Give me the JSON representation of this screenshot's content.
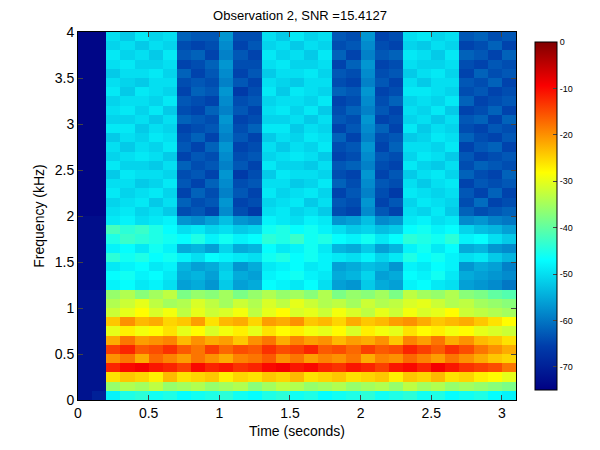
{
  "chart_data": {
    "type": "heatmap",
    "title": "Observation 2, SNR =15.4127",
    "x_label": "Time (seconds)",
    "y_label": "Frequency (kHz)",
    "color": "Jet",
    "xlim": [
      0,
      3.1
    ],
    "ylim": [
      0,
      4
    ],
    "xticks": [
      0,
      0.5,
      1,
      1.5,
      2,
      2.5,
      3
    ],
    "yticks": [
      0,
      0.5,
      1,
      1.5,
      2,
      2.5,
      3,
      3.5,
      4
    ],
    "zlim": [
      -75,
      0
    ],
    "zticks": [
      0,
      -10,
      -20,
      -30,
      -40,
      -50,
      -60,
      -70
    ],
    "x": [
      0.05,
      0.15,
      0.25,
      0.35,
      0.45,
      0.55,
      0.65,
      0.75,
      0.85,
      0.95,
      1.05,
      1.15,
      1.25,
      1.35,
      1.45,
      1.55,
      1.65,
      1.75,
      1.85,
      1.95,
      2.05,
      2.15,
      2.25,
      2.35,
      2.45,
      2.55,
      2.65,
      2.75,
      2.85,
      2.95,
      3.05
    ],
    "y": [
      0.05,
      0.15,
      0.25,
      0.35,
      0.45,
      0.55,
      0.65,
      0.75,
      0.85,
      0.95,
      1.05,
      1.15,
      1.25,
      1.35,
      1.45,
      1.55,
      1.65,
      1.75,
      1.85,
      1.95,
      2.05,
      2.15,
      2.25,
      2.35,
      2.45,
      2.55,
      2.65,
      2.75,
      2.85,
      2.95,
      3.05,
      3.15,
      3.25,
      3.35,
      3.45,
      3.55,
      3.65,
      3.75,
      3.85,
      3.95
    ],
    "z": [
      [
        -72,
        -70,
        -48,
        -45,
        -44,
        -46,
        -45,
        -47,
        -46,
        -45,
        -44,
        -46,
        -47,
        -45,
        -44,
        -46,
        -45,
        -47,
        -46,
        -45,
        -44,
        -46,
        -45,
        -44,
        -46,
        -45,
        -47,
        -46,
        -45,
        -47,
        -48
      ],
      [
        -72,
        -72,
        -36,
        -34,
        -35,
        -33,
        -36,
        -35,
        -34,
        -36,
        -35,
        -34,
        -37,
        -35,
        -33,
        -34,
        -36,
        -35,
        -34,
        -36,
        -35,
        -34,
        -36,
        -33,
        -35,
        -34,
        -36,
        -35,
        -36,
        -37,
        -38
      ],
      [
        -72,
        -72,
        -26,
        -24,
        -25,
        -27,
        -23,
        -26,
        -25,
        -24,
        -27,
        -25,
        -26,
        -24,
        -25,
        -23,
        -26,
        -25,
        -24,
        -26,
        -25,
        -24,
        -27,
        -24,
        -25,
        -23,
        -26,
        -25,
        -27,
        -28,
        -30
      ],
      [
        -72,
        -72,
        -12,
        -10,
        -9,
        -11,
        -12,
        -14,
        -10,
        -12,
        -11,
        -13,
        -12,
        -10,
        -9,
        -11,
        -10,
        -12,
        -13,
        -11,
        -12,
        -14,
        -11,
        -10,
        -12,
        -9,
        -11,
        -13,
        -14,
        -15,
        -18
      ],
      [
        -72,
        -72,
        -20,
        -18,
        -22,
        -17,
        -19,
        -21,
        -18,
        -20,
        -22,
        -19,
        -18,
        -16,
        -20,
        -18,
        -21,
        -19,
        -20,
        -18,
        -22,
        -19,
        -20,
        -17,
        -19,
        -21,
        -18,
        -20,
        -22,
        -24,
        -25
      ],
      [
        -72,
        -72,
        -14,
        -12,
        -16,
        -15,
        -13,
        -16,
        -18,
        -14,
        -17,
        -15,
        -16,
        -13,
        -15,
        -14,
        -12,
        -16,
        -15,
        -17,
        -14,
        -16,
        -15,
        -12,
        -14,
        -16,
        -13,
        -15,
        -18,
        -20,
        -22
      ],
      [
        -72,
        -72,
        -22,
        -18,
        -21,
        -20,
        -19,
        -23,
        -20,
        -22,
        -21,
        -24,
        -20,
        -18,
        -22,
        -19,
        -21,
        -20,
        -23,
        -21,
        -22,
        -20,
        -24,
        -19,
        -21,
        -18,
        -22,
        -20,
        -23,
        -24,
        -26
      ],
      [
        -72,
        -72,
        -30,
        -27,
        -29,
        -28,
        -26,
        -30,
        -28,
        -31,
        -29,
        -27,
        -30,
        -26,
        -28,
        -27,
        -29,
        -30,
        -28,
        -31,
        -27,
        -29,
        -30,
        -26,
        -28,
        -27,
        -29,
        -28,
        -30,
        -31,
        -32
      ],
      [
        -72,
        -72,
        -24,
        -20,
        -23,
        -22,
        -25,
        -24,
        -21,
        -26,
        -23,
        -22,
        -25,
        -21,
        -22,
        -20,
        -24,
        -23,
        -25,
        -22,
        -24,
        -23,
        -21,
        -20,
        -22,
        -24,
        -23,
        -22,
        -24,
        -26,
        -28
      ],
      [
        -72,
        -72,
        -32,
        -30,
        -28,
        -31,
        -29,
        -33,
        -30,
        -32,
        -31,
        -29,
        -33,
        -30,
        -28,
        -31,
        -30,
        -32,
        -29,
        -31,
        -33,
        -30,
        -32,
        -29,
        -31,
        -30,
        -28,
        -32,
        -33,
        -34,
        -35
      ],
      [
        -72,
        -72,
        -34,
        -32,
        -30,
        -33,
        -35,
        -34,
        -31,
        -33,
        -35,
        -32,
        -34,
        -31,
        -33,
        -30,
        -32,
        -34,
        -33,
        -35,
        -32,
        -34,
        -33,
        -31,
        -30,
        -32,
        -34,
        -33,
        -35,
        -36,
        -37
      ],
      [
        -72,
        -72,
        -36,
        -34,
        -37,
        -35,
        -33,
        -38,
        -36,
        -37,
        -35,
        -38,
        -36,
        -34,
        -36,
        -35,
        -37,
        -34,
        -38,
        -36,
        -37,
        -35,
        -38,
        -33,
        -35,
        -36,
        -34,
        -37,
        -38,
        -40,
        -41
      ],
      [
        -73,
        -73,
        -48,
        -47,
        -49,
        -48,
        -50,
        -56,
        -55,
        -57,
        -52,
        -56,
        -55,
        -47,
        -48,
        -49,
        -47,
        -50,
        -56,
        -57,
        -52,
        -55,
        -56,
        -48,
        -47,
        -49,
        -50,
        -56,
        -57,
        -58,
        -60
      ],
      [
        -73,
        -73,
        -47,
        -46,
        -48,
        -47,
        -49,
        -55,
        -54,
        -56,
        -51,
        -55,
        -56,
        -48,
        -47,
        -46,
        -48,
        -49,
        -55,
        -54,
        -51,
        -56,
        -55,
        -47,
        -48,
        -46,
        -49,
        -55,
        -56,
        -57,
        -58
      ],
      [
        -73,
        -73,
        -49,
        -48,
        -47,
        -49,
        -48,
        -54,
        -56,
        -55,
        -52,
        -57,
        -55,
        -49,
        -48,
        -47,
        -49,
        -48,
        -56,
        -55,
        -53,
        -54,
        -57,
        -48,
        -49,
        -47,
        -48,
        -57,
        -55,
        -56,
        -59
      ],
      [
        -73,
        -73,
        -44,
        -46,
        -45,
        -47,
        -46,
        -48,
        -50,
        -47,
        -48,
        -49,
        -50,
        -46,
        -45,
        -47,
        -46,
        -48,
        -49,
        -50,
        -48,
        -51,
        -49,
        -45,
        -47,
        -46,
        -48,
        -50,
        -49,
        -52,
        -54
      ],
      [
        -73,
        -73,
        -48,
        -47,
        -49,
        -46,
        -48,
        -55,
        -54,
        -56,
        -51,
        -55,
        -54,
        -47,
        -49,
        -48,
        -46,
        -49,
        -54,
        -55,
        -52,
        -56,
        -54,
        -48,
        -46,
        -49,
        -47,
        -55,
        -54,
        -57,
        -58
      ],
      [
        -73,
        -73,
        -45,
        -43,
        -44,
        -45,
        -46,
        -47,
        -45,
        -48,
        -46,
        -48,
        -47,
        -44,
        -45,
        -43,
        -46,
        -45,
        -47,
        -48,
        -46,
        -49,
        -47,
        -44,
        -45,
        -46,
        -44,
        -48,
        -47,
        -50,
        -52
      ],
      [
        -73,
        -73,
        -42,
        -44,
        -43,
        -45,
        -47,
        -50,
        -49,
        -51,
        -50,
        -52,
        -51,
        -46,
        -45,
        -47,
        -46,
        -48,
        -50,
        -52,
        -51,
        -53,
        -52,
        -47,
        -46,
        -48,
        -47,
        -51,
        -53,
        -54,
        -56
      ],
      [
        -73,
        -73,
        -49,
        -48,
        -50,
        -49,
        -48,
        -57,
        -58,
        -56,
        -53,
        -57,
        -58,
        -48,
        -49,
        -50,
        -48,
        -49,
        -57,
        -56,
        -53,
        -58,
        -57,
        -49,
        -48,
        -50,
        -49,
        -58,
        -57,
        -59,
        -60
      ],
      [
        -74,
        -74,
        -50,
        -49,
        -51,
        -50,
        -52,
        -64,
        -63,
        -65,
        -58,
        -64,
        -66,
        -50,
        -49,
        -51,
        -50,
        -52,
        -64,
        -65,
        -58,
        -63,
        -65,
        -50,
        -51,
        -49,
        -52,
        -62,
        -64,
        -63,
        -62
      ],
      [
        -74,
        -74,
        -51,
        -50,
        -49,
        -52,
        -50,
        -62,
        -64,
        -63,
        -57,
        -65,
        -64,
        -51,
        -50,
        -49,
        -52,
        -50,
        -63,
        -64,
        -57,
        -65,
        -63,
        -51,
        -49,
        -50,
        -51,
        -64,
        -61,
        -65,
        -64
      ],
      [
        -74,
        -74,
        -49,
        -51,
        -50,
        -49,
        -51,
        -65,
        -62,
        -64,
        -59,
        -63,
        -65,
        -49,
        -51,
        -50,
        -49,
        -51,
        -65,
        -63,
        -59,
        -64,
        -66,
        -49,
        -50,
        -51,
        -50,
        -63,
        -65,
        -62,
        -65
      ],
      [
        -74,
        -74,
        -50,
        -50,
        -52,
        -51,
        -49,
        -63,
        -65,
        -62,
        -58,
        -64,
        -63,
        -50,
        -50,
        -52,
        -51,
        -49,
        -62,
        -64,
        -58,
        -63,
        -64,
        -50,
        -52,
        -50,
        -49,
        -65,
        -63,
        -64,
        -63
      ],
      [
        -74,
        -74,
        -52,
        -49,
        -50,
        -50,
        -51,
        -64,
        -63,
        -65,
        -57,
        -66,
        -64,
        -52,
        -49,
        -50,
        -50,
        -51,
        -64,
        -65,
        -57,
        -65,
        -63,
        -52,
        -50,
        -49,
        -51,
        -62,
        -64,
        -65,
        -62
      ],
      [
        -74,
        -74,
        -49,
        -51,
        -51,
        -52,
        -50,
        -62,
        -64,
        -63,
        -59,
        -63,
        -65,
        -49,
        -51,
        -51,
        -52,
        -50,
        -63,
        -62,
        -59,
        -64,
        -65,
        -49,
        -51,
        -52,
        -50,
        -64,
        -62,
        -63,
        -64
      ],
      [
        -74,
        -74,
        -51,
        -50,
        -49,
        -50,
        -52,
        -65,
        -63,
        -64,
        -58,
        -64,
        -63,
        -51,
        -50,
        -49,
        -50,
        -52,
        -65,
        -64,
        -58,
        -63,
        -64,
        -51,
        -49,
        -50,
        -52,
        -63,
        -65,
        -64,
        -63
      ],
      [
        -74,
        -74,
        -50,
        -52,
        -50,
        -51,
        -49,
        -63,
        -65,
        -62,
        -57,
        -65,
        -64,
        -50,
        -52,
        -50,
        -51,
        -49,
        -64,
        -63,
        -57,
        -65,
        -62,
        -50,
        -50,
        -51,
        -49,
        -65,
        -63,
        -62,
        -65
      ],
      [
        -74,
        -74,
        -52,
        -50,
        -51,
        -49,
        -50,
        -64,
        -62,
        -65,
        -59,
        -63,
        -65,
        -52,
        -50,
        -51,
        -49,
        -50,
        -62,
        -65,
        -59,
        -64,
        -63,
        -52,
        -51,
        -49,
        -50,
        -62,
        -64,
        -65,
        -63
      ],
      [
        -74,
        -74,
        -49,
        -49,
        -52,
        -50,
        -51,
        -65,
        -64,
        -63,
        -58,
        -64,
        -62,
        -49,
        -49,
        -52,
        -50,
        -51,
        -65,
        -63,
        -58,
        -62,
        -65,
        -49,
        -52,
        -50,
        -51,
        -64,
        -65,
        -63,
        -64
      ],
      [
        -74,
        -74,
        -51,
        -51,
        -50,
        -52,
        -50,
        -62,
        -63,
        -64,
        -57,
        -65,
        -64,
        -51,
        -51,
        -50,
        -52,
        -50,
        -63,
        -64,
        -57,
        -65,
        -64,
        -51,
        -50,
        -52,
        -50,
        -63,
        -62,
        -65,
        -62
      ],
      [
        -74,
        -74,
        -50,
        -49,
        -51,
        -49,
        -52,
        -64,
        -65,
        -62,
        -59,
        -63,
        -65,
        -50,
        -49,
        -51,
        -49,
        -52,
        -64,
        -62,
        -59,
        -63,
        -65,
        -50,
        -51,
        -49,
        -52,
        -65,
        -64,
        -62,
        -65
      ],
      [
        -74,
        -74,
        -51,
        -50,
        -50,
        -51,
        -49,
        -63,
        -64,
        -65,
        -58,
        -64,
        -63,
        -51,
        -50,
        -50,
        -51,
        -49,
        -65,
        -64,
        -58,
        -64,
        -62,
        -51,
        -50,
        -51,
        -49,
        -62,
        -65,
        -64,
        -63
      ],
      [
        -74,
        -74,
        -49,
        -52,
        -49,
        -50,
        -51,
        -65,
        -62,
        -63,
        -57,
        -66,
        -64,
        -49,
        -52,
        -49,
        -50,
        -51,
        -62,
        -63,
        -57,
        -65,
        -64,
        -49,
        -49,
        -50,
        -51,
        -64,
        -63,
        -65,
        -64
      ],
      [
        -74,
        -74,
        -50,
        -51,
        -52,
        -50,
        -50,
        -64,
        -63,
        -64,
        -59,
        -63,
        -65,
        -50,
        -51,
        -52,
        -50,
        -50,
        -64,
        -65,
        -59,
        -63,
        -65,
        -50,
        -52,
        -50,
        -50,
        -63,
        -64,
        -62,
        -65
      ],
      [
        -74,
        -74,
        -52,
        -50,
        -50,
        -49,
        -51,
        -62,
        -65,
        -63,
        -58,
        -65,
        -63,
        -52,
        -50,
        -50,
        -49,
        -51,
        -63,
        -64,
        -58,
        -64,
        -63,
        -52,
        -50,
        -49,
        -51,
        -65,
        -62,
        -64,
        -63
      ],
      [
        -74,
        -74,
        -50,
        -49,
        -51,
        -51,
        -50,
        -65,
        -64,
        -62,
        -57,
        -64,
        -64,
        -50,
        -49,
        -51,
        -51,
        -50,
        -65,
        -62,
        -57,
        -65,
        -64,
        -50,
        -51,
        -51,
        -50,
        -64,
        -65,
        -63,
        -64
      ],
      [
        -74,
        -74,
        -49,
        -51,
        -50,
        -52,
        -49,
        -63,
        -62,
        -65,
        -59,
        -63,
        -65,
        -49,
        -51,
        -50,
        -52,
        -49,
        -62,
        -65,
        -59,
        -63,
        -62,
        -49,
        -50,
        -52,
        -49,
        -62,
        -63,
        -65,
        -62
      ],
      [
        -74,
        -74,
        -51,
        -50,
        -52,
        -50,
        -51,
        -64,
        -65,
        -64,
        -58,
        -65,
        -63,
        -51,
        -50,
        -52,
        -50,
        -51,
        -64,
        -63,
        -58,
        -64,
        -65,
        -51,
        -52,
        -50,
        -51,
        -65,
        -64,
        -62,
        -65
      ],
      [
        -74,
        -74,
        -50,
        -52,
        -49,
        -51,
        -50,
        -62,
        -63,
        -63,
        -57,
        -64,
        -64,
        -50,
        -52,
        -49,
        -51,
        -50,
        -63,
        -64,
        -57,
        -65,
        -64,
        -50,
        -49,
        -51,
        -50,
        -63,
        -62,
        -64,
        -63
      ]
    ]
  }
}
